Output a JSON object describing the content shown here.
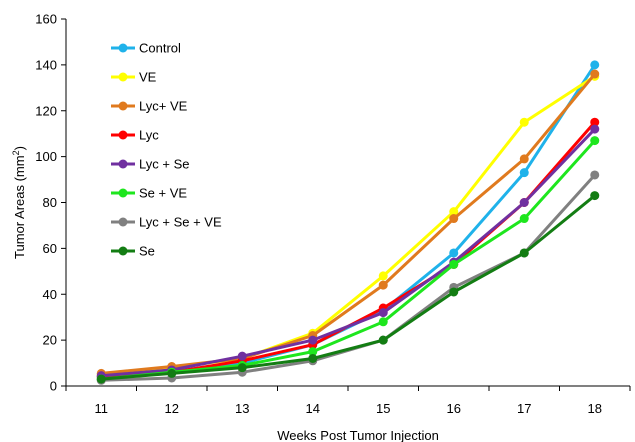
{
  "chart_data": {
    "type": "line",
    "title": "",
    "xlabel": "Weeks Post Tumor Injection",
    "ylabel_main": "Tumor Areas (mm",
    "ylabel_sup": "2",
    "ylabel_end": ")",
    "x": [
      11,
      12,
      13,
      14,
      15,
      16,
      17,
      18
    ],
    "xlim": [
      10.5,
      18.5
    ],
    "ylim": [
      0,
      160
    ],
    "yticks": [
      0,
      20,
      40,
      60,
      80,
      100,
      120,
      140,
      160
    ],
    "grid": false,
    "legend_position": "top-left",
    "series": [
      {
        "name": "Control",
        "color": "#1fb2ea",
        "values": [
          4,
          6,
          10,
          18,
          33,
          58,
          93,
          140
        ]
      },
      {
        "name": "VE",
        "color": "#ffff00",
        "values": [
          5,
          8,
          12,
          23,
          48,
          76,
          115,
          135
        ]
      },
      {
        "name": "Lyc+ VE",
        "color": "#e07a1e",
        "values": [
          5.5,
          8.5,
          12,
          22,
          44,
          73,
          99,
          136
        ]
      },
      {
        "name": "Lyc",
        "color": "#ff0000",
        "values": [
          4,
          6,
          11,
          18,
          34,
          53,
          80,
          115
        ]
      },
      {
        "name": "Lyc + Se",
        "color": "#7030a0",
        "values": [
          4.5,
          7,
          13,
          20,
          32,
          54,
          80,
          112
        ]
      },
      {
        "name": "Se + VE",
        "color": "#1ee61e",
        "values": [
          3,
          6,
          9,
          15,
          28,
          53,
          73,
          107
        ]
      },
      {
        "name": "Lyc + Se + VE",
        "color": "#808080",
        "values": [
          2.5,
          3.5,
          6,
          11,
          20,
          43,
          58,
          92
        ]
      },
      {
        "name": "Se",
        "color": "#137d13",
        "values": [
          3,
          5.5,
          8,
          12,
          20,
          41,
          58,
          83
        ]
      }
    ]
  }
}
